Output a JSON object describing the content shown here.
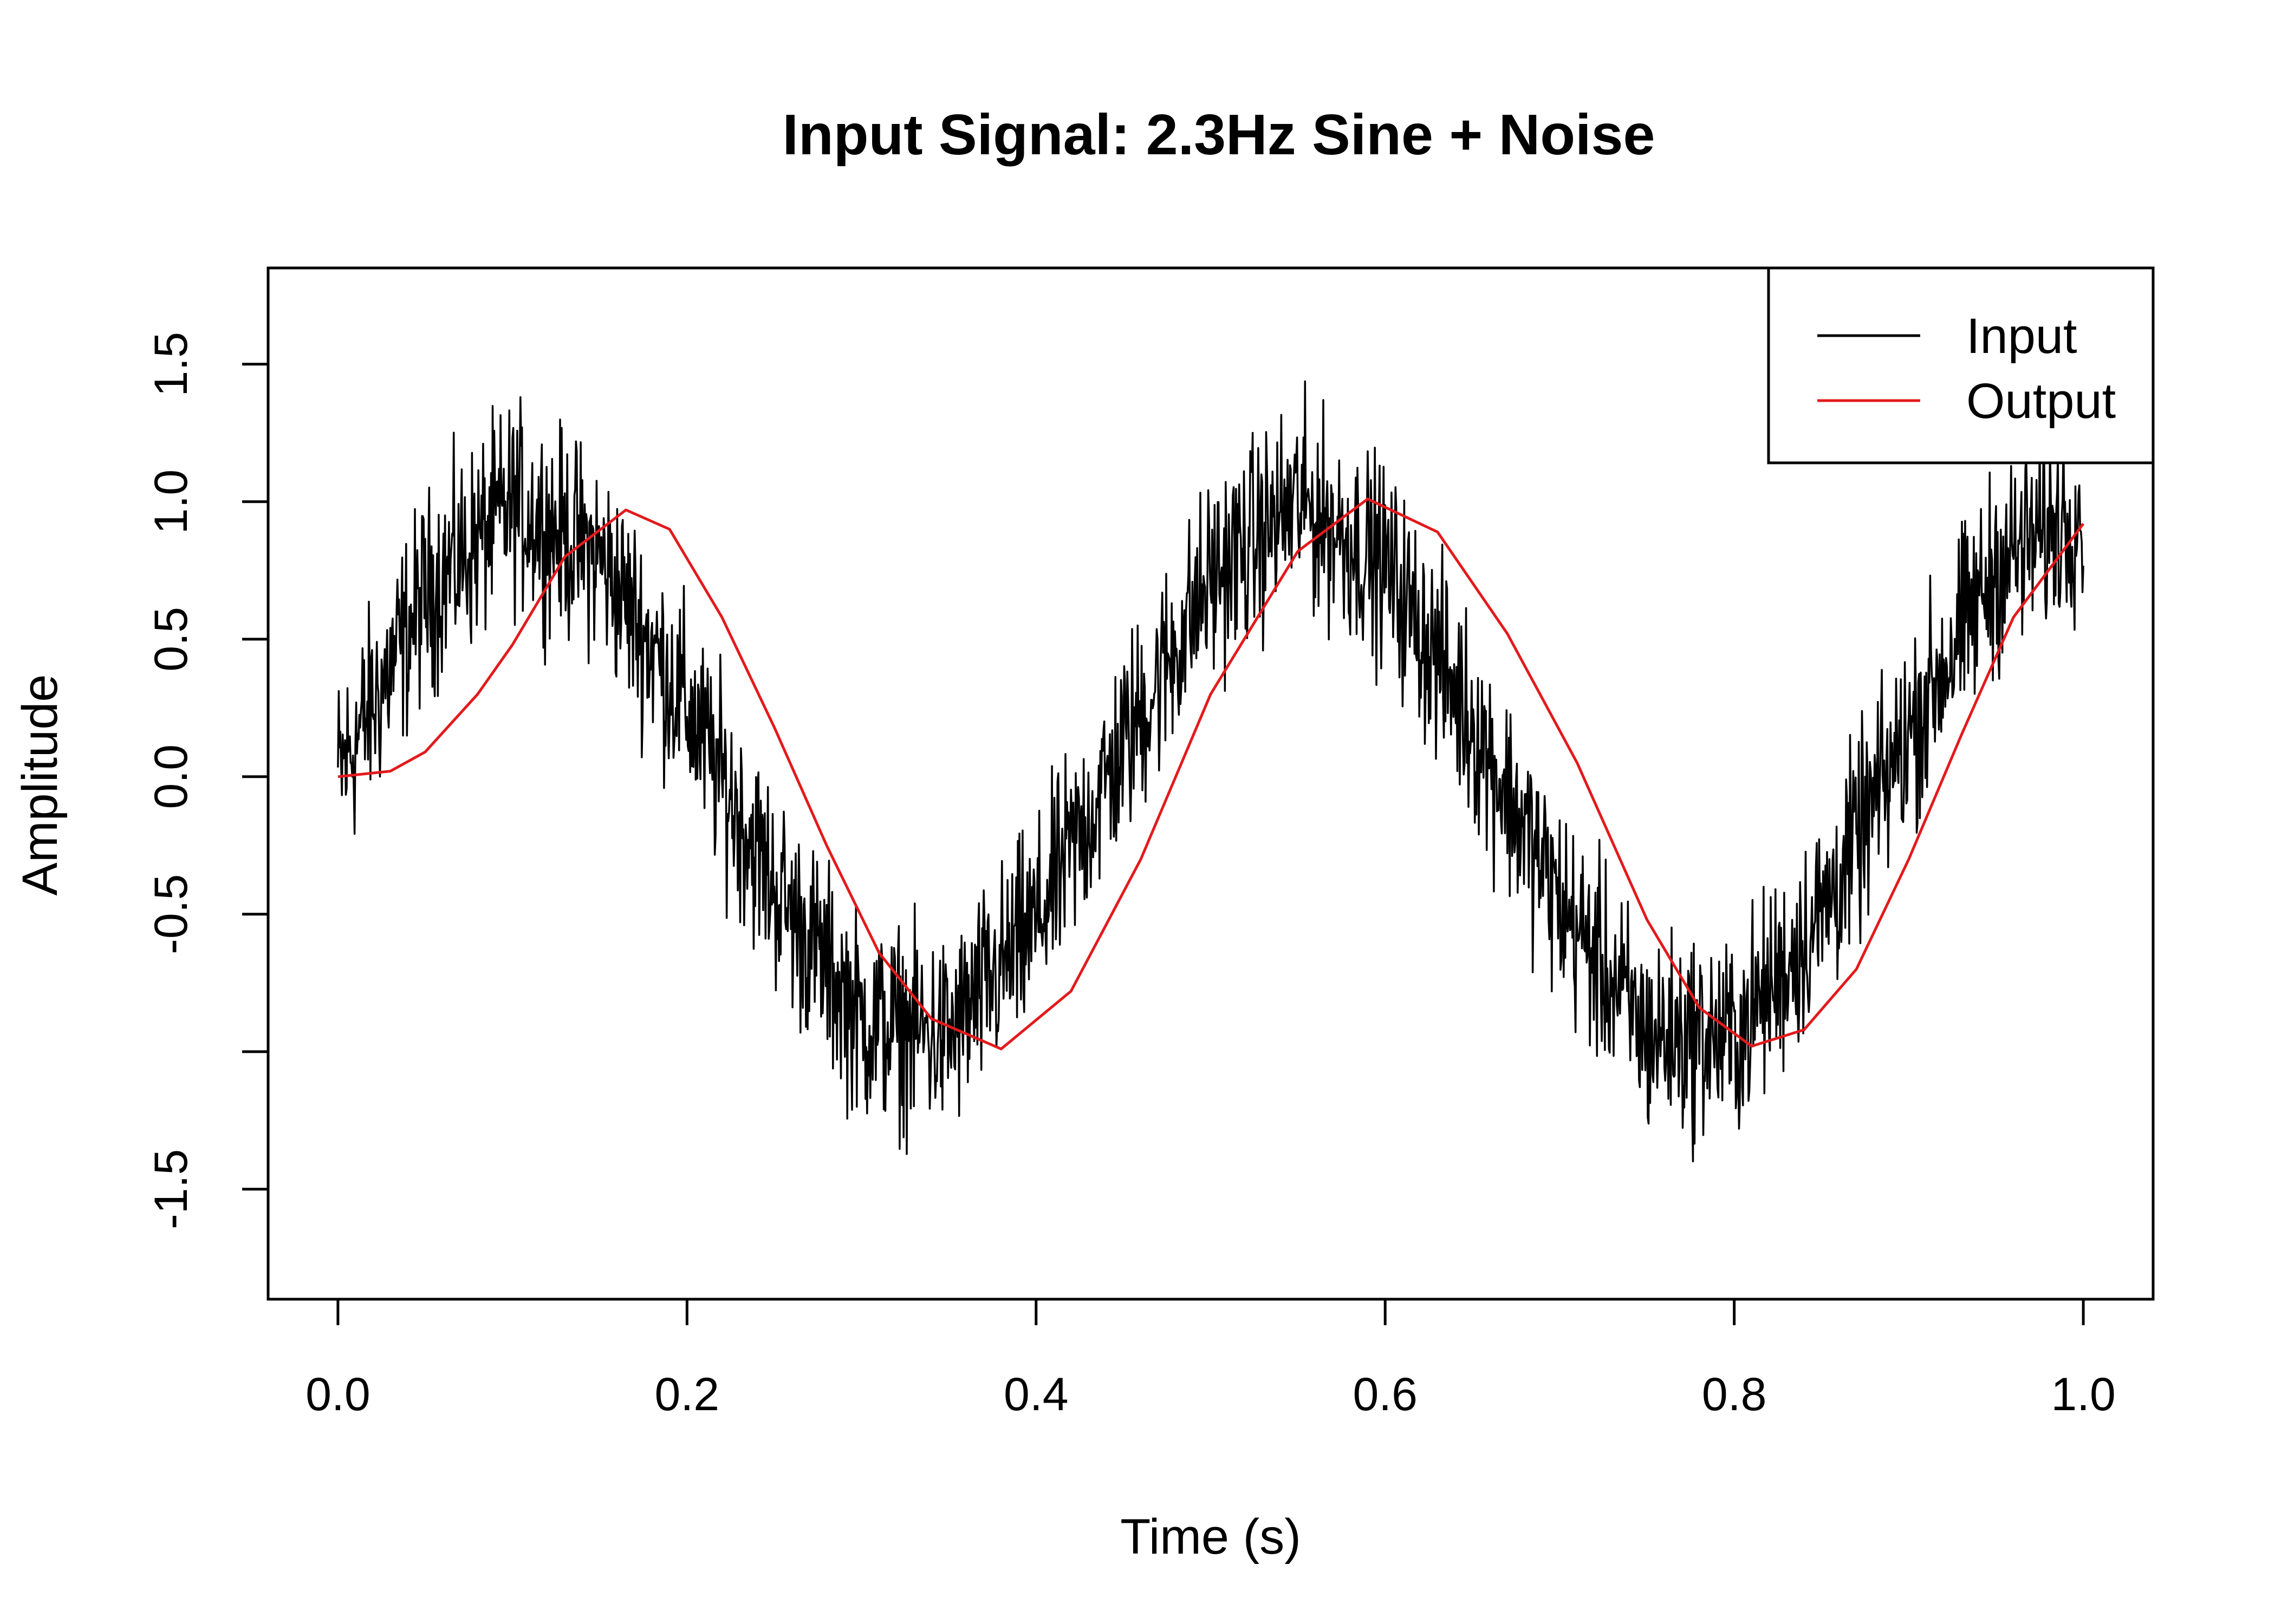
{
  "chart_data": {
    "type": "line",
    "title": "Input Signal: 2.3Hz Sine + Noise",
    "xlabel": "Time (s)",
    "ylabel": "Amplitude",
    "xlim": [
      -0.04,
      1.04
    ],
    "ylim": [
      -1.9,
      1.85
    ],
    "x_ticks": [
      0.0,
      0.2,
      0.4,
      0.6,
      0.8,
      1.0
    ],
    "x_tick_labels": [
      "0.0",
      "0.2",
      "0.4",
      "0.6",
      "0.8",
      "1.0"
    ],
    "y_ticks": [
      -1.5,
      -1.0,
      -0.5,
      0.0,
      0.5,
      1.0,
      1.5
    ],
    "y_tick_labels": [
      "-1.5",
      "",
      "-0.5",
      "0.0",
      "0.5",
      "1.0",
      "1.5"
    ],
    "grid": false,
    "legend": {
      "position": "top-right",
      "entries": [
        "Input",
        "Output"
      ]
    },
    "series": [
      {
        "name": "Input",
        "color": "#000000",
        "x": [
          0.0,
          0.05,
          0.1,
          0.15,
          0.2,
          0.25,
          0.3,
          0.35,
          0.4,
          0.45,
          0.5,
          0.55,
          0.6,
          0.65,
          0.7,
          0.75,
          0.8,
          0.85,
          0.9,
          0.95,
          1.0
        ],
        "y": [
          0.0,
          0.66,
          0.99,
          0.8,
          0.25,
          -0.4,
          -0.89,
          -0.95,
          -0.53,
          0.11,
          0.72,
          1.0,
          0.77,
          0.2,
          -0.46,
          -0.94,
          -0.95,
          -0.5,
          0.16,
          0.76,
          0.99
        ]
      },
      {
        "name": "Output",
        "color": "#e31a1c",
        "x": [
          0.0,
          0.03,
          0.05,
          0.08,
          0.1,
          0.13,
          0.165,
          0.19,
          0.22,
          0.25,
          0.28,
          0.31,
          0.34,
          0.38,
          0.42,
          0.46,
          0.5,
          0.55,
          0.59,
          0.63,
          0.67,
          0.71,
          0.75,
          0.78,
          0.81,
          0.84,
          0.87,
          0.9,
          0.93,
          0.96,
          1.0
        ],
        "y": [
          0.0,
          0.02,
          0.09,
          0.3,
          0.48,
          0.8,
          0.97,
          0.9,
          0.58,
          0.18,
          -0.25,
          -0.64,
          -0.88,
          -0.99,
          -0.78,
          -0.3,
          0.3,
          0.82,
          1.01,
          0.89,
          0.52,
          0.05,
          -0.52,
          -0.84,
          -0.98,
          -0.92,
          -0.7,
          -0.3,
          0.15,
          0.58,
          0.92
        ]
      }
    ]
  }
}
